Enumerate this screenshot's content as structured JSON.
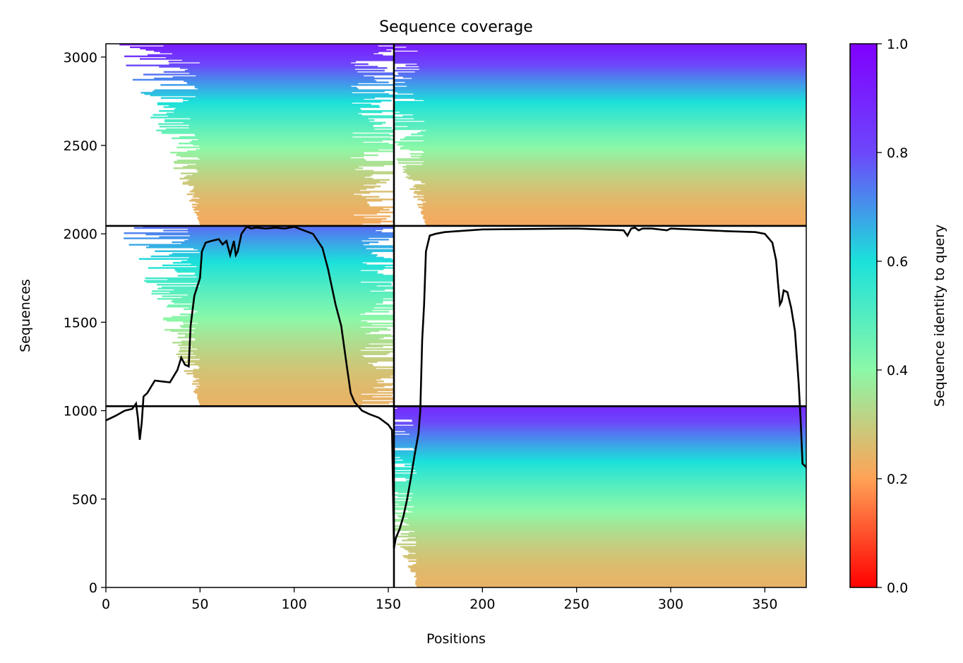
{
  "chart_data": {
    "type": "heatmap",
    "title": "Sequence coverage",
    "xlabel": "Positions",
    "ylabel": "Sequences",
    "xlim": [
      0,
      372
    ],
    "ylim": [
      0,
      3075
    ],
    "xticks": [
      0,
      50,
      100,
      150,
      200,
      250,
      300,
      350
    ],
    "yticks": [
      0,
      500,
      1000,
      1500,
      2000,
      2500,
      3000
    ],
    "colorbar": {
      "label": "Sequence identity to query",
      "range": [
        0.0,
        1.0
      ],
      "ticks": [
        "0.0",
        "0.2",
        "0.4",
        "0.6",
        "0.8",
        "1.0"
      ],
      "colormap": "rainbow_r",
      "colors": [
        "#ff0000",
        "#ffa256",
        "#8bf8a8",
        "#1be1da",
        "#6d47fb",
        "#8000ff"
      ]
    },
    "divider_positions": [
      153
    ],
    "divider_sequences": [
      1025,
      2045
    ],
    "blocks": [
      {
        "x": [
          0,
          153
        ],
        "y": [
          2045,
          3075
        ],
        "identity_top": 0.92,
        "identity_bottom": 0.22,
        "coverage": "partial, dense 50–130"
      },
      {
        "x": [
          153,
          372
        ],
        "y": [
          2045,
          3075
        ],
        "identity_top": 0.92,
        "identity_bottom": 0.22,
        "coverage": "dense 170–372"
      },
      {
        "x": [
          0,
          153
        ],
        "y": [
          1025,
          2045
        ],
        "identity_top": 0.75,
        "identity_bottom": 0.24,
        "coverage": "partial, dense 50–135"
      },
      {
        "x": [
          153,
          372
        ],
        "y": [
          1025,
          2045
        ],
        "identity_top": null,
        "identity_bottom": null,
        "coverage": "empty"
      },
      {
        "x": [
          0,
          153
        ],
        "y": [
          0,
          1025
        ],
        "identity_top": null,
        "identity_bottom": null,
        "coverage": "empty"
      },
      {
        "x": [
          153,
          372
        ],
        "y": [
          0,
          1025
        ],
        "identity_top": 0.88,
        "identity_bottom": 0.24,
        "coverage": "dense 165–372"
      }
    ],
    "coverage_line": {
      "name": "coverage",
      "x": [
        0,
        5,
        10,
        14,
        16,
        17,
        18,
        19,
        20,
        22,
        26,
        30,
        34,
        38,
        40,
        42,
        44,
        45,
        47,
        50,
        51,
        53,
        56,
        60,
        62,
        64,
        66,
        68,
        69,
        70,
        72,
        74,
        75,
        77,
        80,
        85,
        90,
        95,
        100,
        105,
        110,
        115,
        118,
        120,
        122,
        125,
        128,
        130,
        132,
        134,
        136,
        140,
        145,
        150,
        152,
        153,
        154,
        156,
        158,
        160,
        162,
        164,
        166,
        167,
        168,
        169,
        170,
        172,
        175,
        180,
        200,
        250,
        275,
        277,
        279,
        281,
        283,
        285,
        290,
        298,
        300,
        310,
        330,
        345,
        350,
        354,
        356,
        357,
        358,
        359,
        360,
        362,
        364,
        366,
        367,
        368,
        369,
        370,
        372
      ],
      "y": [
        945,
        970,
        1000,
        1010,
        1040,
        960,
        835,
        930,
        1080,
        1100,
        1170,
        1165,
        1160,
        1230,
        1300,
        1260,
        1250,
        1480,
        1650,
        1750,
        1900,
        1950,
        1960,
        1970,
        1940,
        1960,
        1880,
        1960,
        1880,
        1900,
        2000,
        2030,
        2040,
        2030,
        2035,
        2030,
        2035,
        2030,
        2040,
        2020,
        2000,
        1920,
        1800,
        1700,
        1600,
        1480,
        1250,
        1100,
        1050,
        1025,
        1000,
        980,
        960,
        920,
        890,
        220,
        280,
        330,
        400,
        500,
        620,
        750,
        870,
        1000,
        1400,
        1600,
        1900,
        1990,
        2000,
        2010,
        2025,
        2030,
        2020,
        1990,
        2030,
        2035,
        2020,
        2030,
        2030,
        2020,
        2030,
        2025,
        2015,
        2010,
        2000,
        1950,
        1850,
        1720,
        1600,
        1620,
        1680,
        1670,
        1580,
        1450,
        1300,
        1150,
        950,
        700,
        680
      ]
    }
  }
}
